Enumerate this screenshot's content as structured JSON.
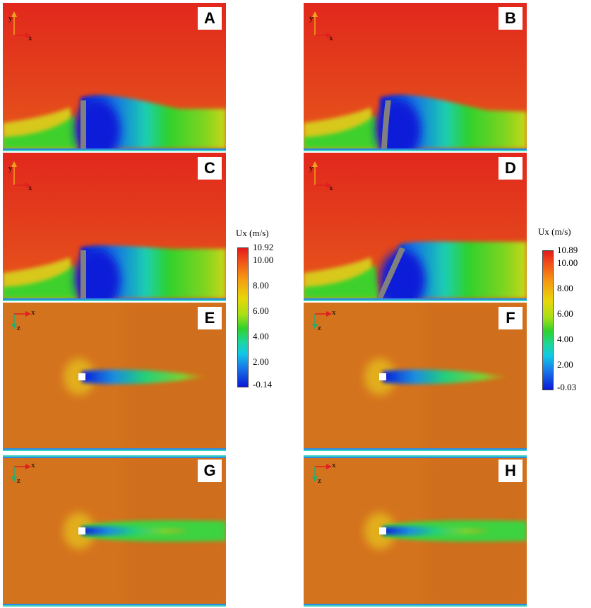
{
  "panels": [
    {
      "id": "A",
      "label": "A",
      "view": "side",
      "mode": "rigid",
      "axis_h": "x",
      "axis_v": "y"
    },
    {
      "id": "B",
      "label": "B",
      "view": "side",
      "mode": "bent-slight",
      "axis_h": "x",
      "axis_v": "y"
    },
    {
      "id": "C",
      "label": "C",
      "view": "side",
      "mode": "rigid",
      "axis_h": "x",
      "axis_v": "y"
    },
    {
      "id": "D",
      "label": "D",
      "view": "side",
      "mode": "bent-strong",
      "axis_h": "x",
      "axis_v": "y"
    },
    {
      "id": "E",
      "label": "E",
      "view": "top",
      "mode": "short-wake",
      "axis_h": "x",
      "axis_v": "z"
    },
    {
      "id": "F",
      "label": "F",
      "view": "top",
      "mode": "short-wake",
      "axis_h": "x",
      "axis_v": "z"
    },
    {
      "id": "G",
      "label": "G",
      "view": "top",
      "mode": "long-wake",
      "axis_h": "x",
      "axis_v": "z"
    },
    {
      "id": "H",
      "label": "H",
      "view": "top",
      "mode": "long-wake",
      "axis_h": "x",
      "axis_v": "z"
    }
  ],
  "colorbars": [
    {
      "title": "Ux (m/s)",
      "max": "10.92",
      "ticks": [
        "10.00",
        "8.00",
        "6.00",
        "4.00",
        "2.00"
      ],
      "min": "-0.14"
    },
    {
      "title": "Ux (m/s)",
      "max": "10.89",
      "ticks": [
        "10.00",
        "8.00",
        "6.00",
        "4.00",
        "2.00"
      ],
      "min": "-0.03"
    }
  ],
  "colors": {
    "free_stream": "#e0401c",
    "top_view_bg": "#d4731e",
    "wake_low": "#0a1ad8",
    "wake_mid": "#2ed12e",
    "plate": "#808080"
  }
}
